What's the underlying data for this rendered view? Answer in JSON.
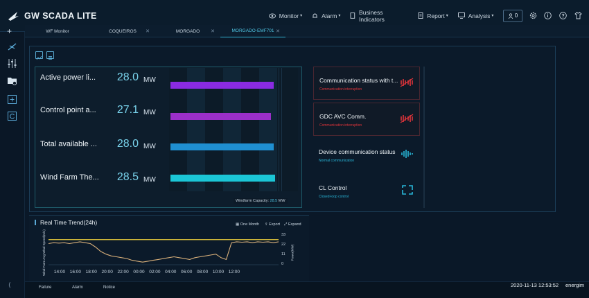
{
  "app": {
    "title": "GW SCADA LITE"
  },
  "nav": {
    "monitor": "Monitor",
    "alarm": "Alarm",
    "business": "Business Indicators",
    "report": "Report",
    "analysis": "Analysis",
    "user_count": "0"
  },
  "tabs": [
    "WF Monitor",
    "COQUEIROS",
    "MORGADO",
    "MORGADO-EMF701"
  ],
  "metrics": [
    {
      "label": "Active power li...",
      "value": "28.0",
      "unit": "MW",
      "fraction": 0.8,
      "color": "#8a2be2"
    },
    {
      "label": "Control point a...",
      "value": "27.1",
      "unit": "MW",
      "fraction": 0.78,
      "color": "#9b2fc9"
    },
    {
      "label": "Total available ...",
      "value": "28.0",
      "unit": "MW",
      "fraction": 0.8,
      "color": "#1f8fd1"
    },
    {
      "label": "Wind Farm The...",
      "value": "28.5",
      "unit": "MW",
      "fraction": 0.81,
      "color": "#1bc6d6"
    }
  ],
  "capacity": {
    "label": "Windfarm Capacity:",
    "value": "28.5",
    "unit": "MW"
  },
  "status_cards": [
    {
      "title": "Communication status with t...",
      "subtitle": "Communication interruption",
      "state": "alarm"
    },
    {
      "title": "GDC AVC Comm.",
      "subtitle": "Communication interruption",
      "state": "alarm"
    },
    {
      "title": "Device communication status",
      "subtitle": "Normal communication",
      "state": "ok"
    },
    {
      "title": "CL Control",
      "subtitle": "Closed-loop control",
      "state": "ok"
    }
  ],
  "colors": {
    "alarm": "#e0343a",
    "ok": "#29b7d9",
    "accent": "#4fc4e2"
  },
  "trend": {
    "title": "Real Time Trend(24h)",
    "controls": [
      "One Month",
      "Export",
      "Expand"
    ],
    "left_axis_label": "Wind Farm Avg Wind Speed(m/s)",
    "right_axis_label": "Power(MW)",
    "x_ticks": [
      "14:00",
      "16:00",
      "18:00",
      "20:00",
      "22:00",
      "00:00",
      "02:00",
      "04:00",
      "06:00",
      "08:00",
      "10:00",
      "12:00"
    ],
    "y_ticks": [
      "33",
      "22",
      "11",
      "0"
    ],
    "line_level": 28.5,
    "power_series": [
      24,
      25,
      24.5,
      25,
      24,
      25,
      26,
      25,
      24,
      20,
      15,
      12,
      10,
      9,
      8,
      7,
      5,
      4,
      3,
      4,
      5,
      6,
      7,
      8,
      9,
      8,
      7,
      6,
      8,
      9,
      10,
      11,
      12,
      8,
      6,
      25,
      26,
      25.5,
      26,
      25,
      26,
      25.5,
      26,
      25,
      26
    ]
  },
  "bottom": {
    "tabs": [
      "Failure",
      "Alarm",
      "Notice"
    ],
    "datetime": "2020-11-13 12:53:52",
    "company": "energim"
  }
}
